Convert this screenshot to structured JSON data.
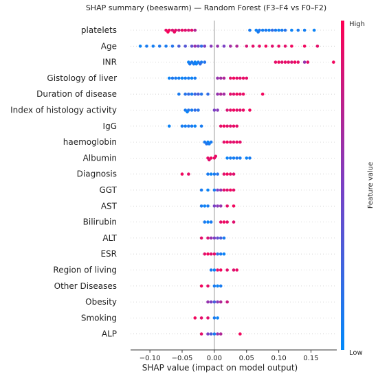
{
  "chart_data": {
    "type": "scatter",
    "title": "SHAP summary (beeswarm) — Random Forest (F3–F4 vs F0–F2)",
    "xlabel": "SHAP value (impact on model output)",
    "xlim": [
      -0.13,
      0.19
    ],
    "xticks": [
      -0.1,
      -0.05,
      0.0,
      0.05,
      0.1,
      0.15
    ],
    "xtick_labels": [
      "−0.10",
      "−0.05",
      "0.00",
      "0.05",
      "0.10",
      "0.15"
    ],
    "colorbar": {
      "label": "Feature value",
      "high_label": "High",
      "low_label": "Low",
      "low_color": "#008afb",
      "mid_color": "#7a3fc4",
      "high_color": "#ff0052"
    },
    "features": [
      {
        "name": "platelets",
        "points": [
          {
            "x": -0.075,
            "v": 0.9
          },
          {
            "x": -0.07,
            "v": 0.95
          },
          {
            "x": -0.065,
            "v": 0.85
          },
          {
            "x": -0.06,
            "v": 0.9
          },
          {
            "x": -0.055,
            "v": 0.8
          },
          {
            "x": -0.05,
            "v": 0.92
          },
          {
            "x": -0.045,
            "v": 0.88
          },
          {
            "x": -0.04,
            "v": 0.85
          },
          {
            "x": -0.035,
            "v": 0.9
          },
          {
            "x": -0.03,
            "v": 0.7
          },
          {
            "x": -0.072,
            "v": 0.98
          },
          {
            "x": -0.062,
            "v": 0.93
          },
          {
            "x": 0.055,
            "v": 0.1
          },
          {
            "x": 0.065,
            "v": 0.05
          },
          {
            "x": 0.07,
            "v": 0.15
          },
          {
            "x": 0.075,
            "v": 0.08
          },
          {
            "x": 0.08,
            "v": 0.12
          },
          {
            "x": 0.085,
            "v": 0.05
          },
          {
            "x": 0.09,
            "v": 0.2
          },
          {
            "x": 0.095,
            "v": 0.1
          },
          {
            "x": 0.1,
            "v": 0.05
          },
          {
            "x": 0.105,
            "v": 0.1
          },
          {
            "x": 0.11,
            "v": 0.15
          },
          {
            "x": 0.12,
            "v": 0.05
          },
          {
            "x": 0.13,
            "v": 0.1
          },
          {
            "x": 0.14,
            "v": 0.08
          },
          {
            "x": 0.155,
            "v": 0.05
          },
          {
            "x": 0.068,
            "v": 0.1
          }
        ]
      },
      {
        "name": "Age",
        "points": [
          {
            "x": -0.115,
            "v": 0.05
          },
          {
            "x": -0.105,
            "v": 0.1
          },
          {
            "x": -0.095,
            "v": 0.08
          },
          {
            "x": -0.085,
            "v": 0.12
          },
          {
            "x": -0.075,
            "v": 0.1
          },
          {
            "x": -0.065,
            "v": 0.15
          },
          {
            "x": -0.055,
            "v": 0.3
          },
          {
            "x": -0.045,
            "v": 0.35
          },
          {
            "x": -0.035,
            "v": 0.4
          },
          {
            "x": -0.025,
            "v": 0.45
          },
          {
            "x": -0.015,
            "v": 0.5
          },
          {
            "x": -0.005,
            "v": 0.55
          },
          {
            "x": 0.005,
            "v": 0.6
          },
          {
            "x": 0.015,
            "v": 0.5
          },
          {
            "x": 0.025,
            "v": 0.65
          },
          {
            "x": 0.035,
            "v": 0.7
          },
          {
            "x": 0.05,
            "v": 0.85
          },
          {
            "x": 0.06,
            "v": 0.9
          },
          {
            "x": 0.07,
            "v": 0.9
          },
          {
            "x": 0.08,
            "v": 0.95
          },
          {
            "x": 0.09,
            "v": 0.88
          },
          {
            "x": 0.1,
            "v": 0.92
          },
          {
            "x": 0.11,
            "v": 0.9
          },
          {
            "x": 0.12,
            "v": 0.95
          },
          {
            "x": 0.14,
            "v": 0.95
          },
          {
            "x": 0.16,
            "v": 0.9
          },
          {
            "x": -0.02,
            "v": 0.2
          },
          {
            "x": -0.03,
            "v": 0.6
          }
        ]
      },
      {
        "name": "INR",
        "points": [
          {
            "x": -0.04,
            "v": 0.05
          },
          {
            "x": -0.035,
            "v": 0.1
          },
          {
            "x": -0.03,
            "v": 0.05
          },
          {
            "x": -0.025,
            "v": 0.08
          },
          {
            "x": -0.02,
            "v": 0.1
          },
          {
            "x": -0.015,
            "v": 0.15
          },
          {
            "x": -0.038,
            "v": 0.12
          },
          {
            "x": -0.028,
            "v": 0.05
          },
          {
            "x": -0.022,
            "v": 0.2
          },
          {
            "x": -0.032,
            "v": 0.1
          },
          {
            "x": 0.095,
            "v": 0.9
          },
          {
            "x": 0.1,
            "v": 0.95
          },
          {
            "x": 0.105,
            "v": 0.88
          },
          {
            "x": 0.11,
            "v": 0.92
          },
          {
            "x": 0.115,
            "v": 0.9
          },
          {
            "x": 0.12,
            "v": 0.85
          },
          {
            "x": 0.125,
            "v": 0.95
          },
          {
            "x": 0.13,
            "v": 0.9
          },
          {
            "x": 0.14,
            "v": 0.6
          },
          {
            "x": 0.145,
            "v": 0.9
          },
          {
            "x": 0.185,
            "v": 0.95
          }
        ]
      },
      {
        "name": "Gistology of liver",
        "points": [
          {
            "x": -0.07,
            "v": 0.05
          },
          {
            "x": -0.06,
            "v": 0.1
          },
          {
            "x": -0.05,
            "v": 0.05
          },
          {
            "x": -0.045,
            "v": 0.08
          },
          {
            "x": -0.04,
            "v": 0.1
          },
          {
            "x": -0.035,
            "v": 0.05
          },
          {
            "x": -0.03,
            "v": 0.1
          },
          {
            "x": -0.065,
            "v": 0.12
          },
          {
            "x": -0.055,
            "v": 0.08
          },
          {
            "x": 0.005,
            "v": 0.6
          },
          {
            "x": 0.01,
            "v": 0.65
          },
          {
            "x": 0.015,
            "v": 0.7
          },
          {
            "x": 0.025,
            "v": 0.9
          },
          {
            "x": 0.03,
            "v": 0.95
          },
          {
            "x": 0.035,
            "v": 0.9
          },
          {
            "x": 0.04,
            "v": 0.88
          },
          {
            "x": 0.045,
            "v": 0.92
          },
          {
            "x": 0.05,
            "v": 0.9
          }
        ]
      },
      {
        "name": "Duration of disease",
        "points": [
          {
            "x": -0.055,
            "v": 0.1
          },
          {
            "x": -0.045,
            "v": 0.15
          },
          {
            "x": -0.04,
            "v": 0.2
          },
          {
            "x": -0.035,
            "v": 0.1
          },
          {
            "x": -0.03,
            "v": 0.25
          },
          {
            "x": -0.025,
            "v": 0.3
          },
          {
            "x": -0.02,
            "v": 0.15
          },
          {
            "x": -0.01,
            "v": 0.2
          },
          {
            "x": 0.005,
            "v": 0.6
          },
          {
            "x": 0.01,
            "v": 0.7
          },
          {
            "x": 0.015,
            "v": 0.65
          },
          {
            "x": 0.025,
            "v": 0.9
          },
          {
            "x": 0.03,
            "v": 0.88
          },
          {
            "x": 0.035,
            "v": 0.95
          },
          {
            "x": 0.04,
            "v": 0.9
          },
          {
            "x": 0.045,
            "v": 0.92
          },
          {
            "x": 0.075,
            "v": 0.95
          }
        ]
      },
      {
        "name": "Index of histology activity",
        "points": [
          {
            "x": -0.045,
            "v": 0.1
          },
          {
            "x": -0.04,
            "v": 0.15
          },
          {
            "x": -0.035,
            "v": 0.1
          },
          {
            "x": -0.03,
            "v": 0.2
          },
          {
            "x": -0.025,
            "v": 0.15
          },
          {
            "x": -0.042,
            "v": 0.05
          },
          {
            "x": 0.0,
            "v": 0.5
          },
          {
            "x": 0.005,
            "v": 0.55
          },
          {
            "x": 0.02,
            "v": 0.85
          },
          {
            "x": 0.025,
            "v": 0.9
          },
          {
            "x": 0.03,
            "v": 0.95
          },
          {
            "x": 0.035,
            "v": 0.9
          },
          {
            "x": 0.04,
            "v": 0.88
          },
          {
            "x": 0.045,
            "v": 0.92
          },
          {
            "x": 0.055,
            "v": 0.95
          }
        ]
      },
      {
        "name": "IgG",
        "points": [
          {
            "x": -0.07,
            "v": 0.05
          },
          {
            "x": -0.05,
            "v": 0.1
          },
          {
            "x": -0.045,
            "v": 0.08
          },
          {
            "x": -0.04,
            "v": 0.12
          },
          {
            "x": -0.035,
            "v": 0.1
          },
          {
            "x": -0.03,
            "v": 0.05
          },
          {
            "x": -0.02,
            "v": 0.1
          },
          {
            "x": 0.01,
            "v": 0.9
          },
          {
            "x": 0.015,
            "v": 0.95
          },
          {
            "x": 0.02,
            "v": 0.9
          },
          {
            "x": 0.025,
            "v": 0.88
          },
          {
            "x": 0.03,
            "v": 0.92
          },
          {
            "x": 0.035,
            "v": 0.9
          }
        ]
      },
      {
        "name": "haemoglobin",
        "points": [
          {
            "x": -0.015,
            "v": 0.1
          },
          {
            "x": -0.01,
            "v": 0.05
          },
          {
            "x": -0.005,
            "v": 0.1
          },
          {
            "x": -0.012,
            "v": 0.15
          },
          {
            "x": -0.008,
            "v": 0.08
          },
          {
            "x": 0.015,
            "v": 0.9
          },
          {
            "x": 0.02,
            "v": 0.95
          },
          {
            "x": 0.025,
            "v": 0.9
          },
          {
            "x": 0.03,
            "v": 0.88
          },
          {
            "x": 0.035,
            "v": 0.92
          },
          {
            "x": 0.04,
            "v": 0.9
          }
        ]
      },
      {
        "name": "Albumin",
        "points": [
          {
            "x": -0.01,
            "v": 0.9
          },
          {
            "x": -0.005,
            "v": 0.95
          },
          {
            "x": 0.0,
            "v": 0.9
          },
          {
            "x": -0.008,
            "v": 0.88
          },
          {
            "x": 0.002,
            "v": 0.92
          },
          {
            "x": 0.02,
            "v": 0.05
          },
          {
            "x": 0.025,
            "v": 0.1
          },
          {
            "x": 0.03,
            "v": 0.08
          },
          {
            "x": 0.035,
            "v": 0.12
          },
          {
            "x": 0.04,
            "v": 0.1
          },
          {
            "x": 0.05,
            "v": 0.05
          },
          {
            "x": 0.055,
            "v": 0.1
          }
        ]
      },
      {
        "name": "Diagnosis",
        "points": [
          {
            "x": -0.05,
            "v": 0.95
          },
          {
            "x": -0.04,
            "v": 0.9
          },
          {
            "x": -0.01,
            "v": 0.1
          },
          {
            "x": -0.005,
            "v": 0.05
          },
          {
            "x": 0.0,
            "v": 0.1
          },
          {
            "x": 0.005,
            "v": 0.15
          },
          {
            "x": 0.015,
            "v": 0.9
          },
          {
            "x": 0.02,
            "v": 0.95
          },
          {
            "x": 0.025,
            "v": 0.9
          },
          {
            "x": 0.03,
            "v": 0.88
          }
        ]
      },
      {
        "name": "GGT",
        "points": [
          {
            "x": -0.02,
            "v": 0.1
          },
          {
            "x": -0.01,
            "v": 0.05
          },
          {
            "x": 0.0,
            "v": 0.1
          },
          {
            "x": 0.005,
            "v": 0.5
          },
          {
            "x": 0.01,
            "v": 0.6
          },
          {
            "x": 0.015,
            "v": 0.9
          },
          {
            "x": 0.02,
            "v": 0.88
          },
          {
            "x": 0.025,
            "v": 0.95
          },
          {
            "x": 0.03,
            "v": 0.9
          }
        ]
      },
      {
        "name": "AST",
        "points": [
          {
            "x": -0.02,
            "v": 0.1
          },
          {
            "x": -0.015,
            "v": 0.05
          },
          {
            "x": -0.01,
            "v": 0.1
          },
          {
            "x": 0.0,
            "v": 0.5
          },
          {
            "x": 0.005,
            "v": 0.55
          },
          {
            "x": 0.01,
            "v": 0.6
          },
          {
            "x": 0.02,
            "v": 0.9
          },
          {
            "x": 0.03,
            "v": 0.95
          }
        ]
      },
      {
        "name": "Bilirubin",
        "points": [
          {
            "x": -0.015,
            "v": 0.1
          },
          {
            "x": -0.01,
            "v": 0.05
          },
          {
            "x": -0.005,
            "v": 0.1
          },
          {
            "x": 0.01,
            "v": 0.9
          },
          {
            "x": 0.015,
            "v": 0.95
          },
          {
            "x": 0.02,
            "v": 0.9
          },
          {
            "x": 0.03,
            "v": 0.88
          }
        ]
      },
      {
        "name": "ALT",
        "points": [
          {
            "x": -0.02,
            "v": 0.9
          },
          {
            "x": -0.01,
            "v": 0.85
          },
          {
            "x": -0.005,
            "v": 0.6
          },
          {
            "x": 0.0,
            "v": 0.5
          },
          {
            "x": 0.005,
            "v": 0.4
          },
          {
            "x": 0.01,
            "v": 0.3
          },
          {
            "x": 0.015,
            "v": 0.1
          }
        ]
      },
      {
        "name": "ESR",
        "points": [
          {
            "x": -0.015,
            "v": 0.9
          },
          {
            "x": -0.01,
            "v": 0.95
          },
          {
            "x": -0.005,
            "v": 0.88
          },
          {
            "x": 0.0,
            "v": 0.9
          },
          {
            "x": 0.005,
            "v": 0.2
          },
          {
            "x": 0.01,
            "v": 0.1
          },
          {
            "x": 0.015,
            "v": 0.05
          }
        ]
      },
      {
        "name": "Region of living",
        "points": [
          {
            "x": -0.005,
            "v": 0.1
          },
          {
            "x": 0.0,
            "v": 0.05
          },
          {
            "x": 0.005,
            "v": 0.9
          },
          {
            "x": 0.01,
            "v": 0.95
          },
          {
            "x": 0.02,
            "v": 0.9
          },
          {
            "x": 0.03,
            "v": 0.88
          },
          {
            "x": 0.035,
            "v": 0.92
          }
        ]
      },
      {
        "name": "Other Diseases",
        "points": [
          {
            "x": -0.02,
            "v": 0.95
          },
          {
            "x": -0.01,
            "v": 0.9
          },
          {
            "x": 0.0,
            "v": 0.1
          },
          {
            "x": 0.005,
            "v": 0.05
          },
          {
            "x": 0.01,
            "v": 0.1
          }
        ]
      },
      {
        "name": "Obesity",
        "points": [
          {
            "x": -0.01,
            "v": 0.6
          },
          {
            "x": -0.005,
            "v": 0.5
          },
          {
            "x": 0.0,
            "v": 0.3
          },
          {
            "x": 0.005,
            "v": 0.55
          },
          {
            "x": 0.01,
            "v": 0.7
          },
          {
            "x": 0.02,
            "v": 0.8
          }
        ]
      },
      {
        "name": "Smoking",
        "points": [
          {
            "x": -0.03,
            "v": 0.95
          },
          {
            "x": -0.02,
            "v": 0.9
          },
          {
            "x": -0.01,
            "v": 0.88
          },
          {
            "x": 0.0,
            "v": 0.1
          },
          {
            "x": 0.005,
            "v": 0.05
          }
        ]
      },
      {
        "name": "ALP",
        "points": [
          {
            "x": -0.02,
            "v": 0.9
          },
          {
            "x": -0.01,
            "v": 0.5
          },
          {
            "x": -0.005,
            "v": 0.3
          },
          {
            "x": 0.0,
            "v": 0.1
          },
          {
            "x": 0.005,
            "v": 0.6
          },
          {
            "x": 0.01,
            "v": 0.7
          },
          {
            "x": 0.04,
            "v": 0.95
          }
        ]
      }
    ]
  }
}
